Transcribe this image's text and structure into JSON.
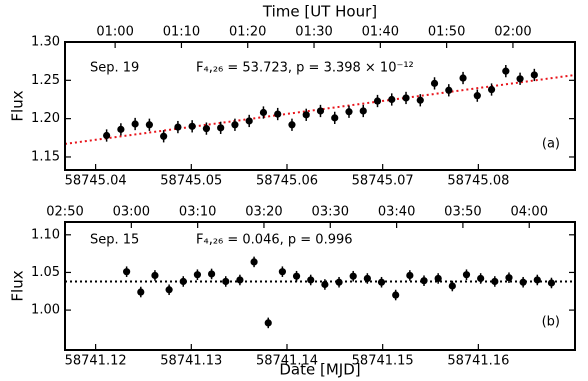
{
  "chart_data": [
    {
      "type": "scatter",
      "x2label": "Time [UT Hour]",
      "ylabel": "Flux",
      "annotations": [
        "Sep. 19",
        "F₄,₂₆ = 53.723, p = 3.398 × 10⁻¹²",
        "(a)"
      ],
      "x": [
        58745.04115,
        58745.04264,
        58745.04413,
        58745.04562,
        58745.04711,
        58745.0486,
        58745.05009,
        58745.05158,
        58745.05307,
        58745.05456,
        58745.05605,
        58745.05754,
        58745.05903,
        58745.06052,
        58745.06201,
        58745.0635,
        58745.06499,
        58745.06648,
        58745.06797,
        58745.06946,
        58745.07095,
        58745.07244,
        58745.07393,
        58745.07542,
        58745.07691,
        58745.0784,
        58745.07989,
        58745.08138,
        58745.08287,
        58745.08436,
        58745.08585
      ],
      "values": [
        1.178,
        1.186,
        1.193,
        1.192,
        1.177,
        1.189,
        1.19,
        1.187,
        1.188,
        1.192,
        1.197,
        1.208,
        1.206,
        1.192,
        1.205,
        1.21,
        1.201,
        1.209,
        1.21,
        1.223,
        1.225,
        1.227,
        1.224,
        1.246,
        1.237,
        1.253,
        1.23,
        1.238,
        1.262,
        1.252,
        1.257
      ],
      "error": 0.008,
      "color": "#000000",
      "fit": {
        "x": [
          58745.0368,
          58745.0901
        ],
        "y": [
          1.167,
          1.257
        ],
        "color": "#e8141b"
      },
      "xlim": [
        58745.0368,
        58745.0901
      ],
      "xticks": [
        58745.04,
        58745.05,
        58745.06,
        58745.07,
        58745.08
      ],
      "ylim": [
        1.133,
        1.3
      ],
      "yticks": [
        1.15,
        {
          "value": 1.2,
          "label": "1.20"
        },
        1.25,
        {
          "value": 1.3,
          "label": "1.30"
        }
      ],
      "x2lim": [
        0.874,
        2.156
      ],
      "x2ticks": [
        {
          "value": 1,
          "label": "01:00"
        },
        {
          "value": 1.1667,
          "label": "01:10"
        },
        {
          "value": 1.3333,
          "label": "01:20"
        },
        {
          "value": 1.5,
          "label": "01:30"
        },
        {
          "value": 1.6667,
          "label": "01:40"
        },
        {
          "value": 1.8333,
          "label": "01:50"
        },
        {
          "value": 2,
          "label": "02:00"
        }
      ]
    },
    {
      "type": "scatter",
      "xlabel": "Date [MJD]",
      "ylabel": "Flux",
      "annotations": [
        "Sep. 15",
        "F₄,₂₆ = 0.046, p = 0.996",
        "(b)"
      ],
      "x": [
        58741.12324,
        58741.12472,
        58741.1262,
        58741.12768,
        58741.12916,
        58741.13064,
        58741.13212,
        58741.1336,
        58741.13508,
        58741.13656,
        58741.13804,
        58741.13952,
        58741.141,
        58741.14248,
        58741.14396,
        58741.14544,
        58741.14692,
        58741.1484,
        58741.14988,
        58741.15136,
        58741.15284,
        58741.15432,
        58741.1558,
        58741.15728,
        58741.15876,
        58741.16024,
        58741.16172,
        58741.1632,
        58741.16468,
        58741.16616,
        58741.16764
      ],
      "values": [
        1.051,
        1.024,
        1.046,
        1.027,
        1.038,
        1.047,
        1.048,
        1.038,
        1.04,
        1.064,
        0.983,
        1.051,
        1.045,
        1.04,
        1.034,
        1.037,
        1.045,
        1.042,
        1.037,
        1.02,
        1.046,
        1.039,
        1.042,
        1.032,
        1.047,
        1.042,
        1.038,
        1.043,
        1.037,
        1.04,
        1.036
      ],
      "error": 0.007,
      "color": "#000000",
      "mean": 1.038,
      "mean_color": "#000000",
      "xlim": [
        58741.1168,
        58741.1701
      ],
      "xticks": [
        58741.12,
        58741.13,
        58741.14,
        58741.15,
        58741.16
      ],
      "ylim": [
        0.947,
        1.117
      ],
      "yticks": [
        {
          "value": 1,
          "label": "1.00"
        },
        1.05,
        {
          "value": 1.1,
          "label": "1.10"
        }
      ],
      "x2lim": [
        2.8333,
        4.115
      ],
      "x2ticks": [
        {
          "value": 2.8333,
          "label": "02:50"
        },
        {
          "value": 3,
          "label": "03:00"
        },
        {
          "value": 3.1667,
          "label": "03:10"
        },
        {
          "value": 3.3333,
          "label": "03:20"
        },
        {
          "value": 3.5,
          "label": "03:30"
        },
        {
          "value": 3.6667,
          "label": "03:40"
        },
        {
          "value": 3.8333,
          "label": "03:50"
        },
        {
          "value": 4,
          "label": "04:00"
        }
      ]
    }
  ]
}
